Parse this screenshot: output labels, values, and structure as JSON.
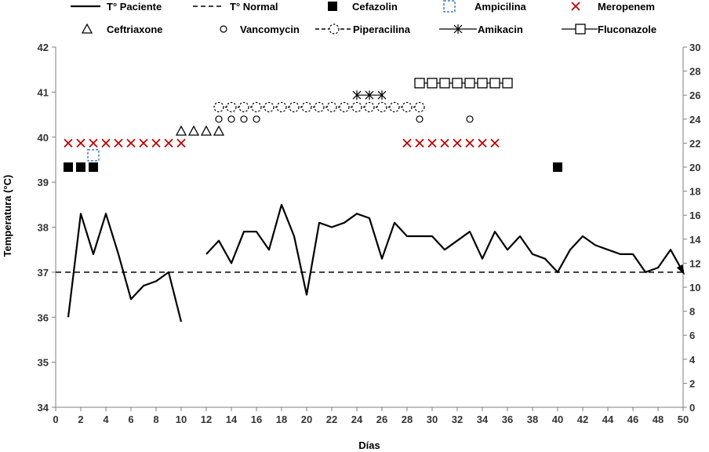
{
  "chart_data": {
    "type": "line",
    "title": "",
    "xlabel": "Días",
    "ylabel": "Temperatura (°C)",
    "y2label": "",
    "xlim": [
      0,
      50
    ],
    "ylim": [
      34,
      42
    ],
    "y2lim": [
      0,
      30
    ],
    "x_ticks": [
      0,
      2,
      4,
      6,
      8,
      10,
      12,
      14,
      16,
      18,
      20,
      22,
      24,
      26,
      28,
      30,
      32,
      34,
      36,
      38,
      40,
      42,
      44,
      46,
      48,
      50
    ],
    "y_ticks": [
      34,
      35,
      36,
      37,
      38,
      39,
      40,
      41,
      42
    ],
    "y2_ticks": [
      0,
      2,
      4,
      6,
      8,
      10,
      12,
      14,
      16,
      18,
      20,
      22,
      24,
      26,
      28,
      30
    ],
    "grid": false,
    "legend_position": "top",
    "legend": [
      {
        "key": "tpac",
        "label": "T° Paciente",
        "style": "solid-line"
      },
      {
        "key": "tnorm",
        "label": "T° Normal",
        "style": "dashed-line"
      },
      {
        "key": "cefazolin",
        "label": "Cefazolin",
        "style": "filled-square"
      },
      {
        "key": "ampicilina",
        "label": "Ampicilina",
        "style": "dashed-blue-square"
      },
      {
        "key": "meropenem",
        "label": "Meropenem",
        "style": "red-x"
      },
      {
        "key": "ceftriaxone",
        "label": "Ceftriaxone",
        "style": "triangle"
      },
      {
        "key": "vancomycin",
        "label": "Vancomycin",
        "style": "circle"
      },
      {
        "key": "piperacilina",
        "label": "Piperacilina",
        "style": "dashed-line-dashed-circle"
      },
      {
        "key": "amikacin",
        "label": "Amikacin",
        "style": "line-asterisk"
      },
      {
        "key": "fluconazole",
        "label": "Fluconazole",
        "style": "line-square"
      }
    ],
    "patient_temperature": {
      "segments": [
        [
          [
            1,
            36.0
          ],
          [
            2,
            38.3
          ],
          [
            3,
            37.4
          ],
          [
            4,
            38.3
          ],
          [
            5,
            37.4
          ],
          [
            6,
            36.4
          ],
          [
            7,
            36.7
          ],
          [
            8,
            36.8
          ],
          [
            9,
            37.0
          ],
          [
            10,
            35.9
          ]
        ],
        [
          [
            12,
            37.4
          ],
          [
            13,
            37.7
          ],
          [
            14,
            37.2
          ],
          [
            15,
            37.9
          ],
          [
            16,
            37.9
          ],
          [
            17,
            37.5
          ],
          [
            18,
            38.5
          ],
          [
            19,
            37.8
          ],
          [
            20,
            36.5
          ],
          [
            21,
            38.1
          ],
          [
            22,
            38.0
          ],
          [
            23,
            38.1
          ],
          [
            24,
            38.3
          ],
          [
            25,
            38.2
          ],
          [
            26,
            37.3
          ],
          [
            27,
            38.1
          ],
          [
            28,
            37.8
          ],
          [
            29,
            37.8
          ],
          [
            30,
            37.8
          ],
          [
            31,
            37.5
          ],
          [
            32,
            37.7
          ],
          [
            33,
            37.9
          ],
          [
            34,
            37.3
          ],
          [
            35,
            37.9
          ],
          [
            36,
            37.5
          ],
          [
            37,
            37.8
          ],
          [
            38,
            37.4
          ],
          [
            39,
            37.3
          ],
          [
            40,
            37.0
          ],
          [
            41,
            37.5
          ],
          [
            42,
            37.8
          ],
          [
            43,
            37.6
          ],
          [
            44,
            37.5
          ],
          [
            45,
            37.4
          ],
          [
            46,
            37.4
          ],
          [
            47,
            37.0
          ],
          [
            48,
            37.1
          ],
          [
            49,
            37.5
          ],
          [
            50,
            37.0
          ]
        ]
      ]
    },
    "normal_temperature": 37.0,
    "treatments_secondary_axis": {
      "cefazolin": {
        "y2": 20,
        "days": [
          1,
          2,
          3,
          40
        ]
      },
      "ampicilina": {
        "y2": 21,
        "days": [
          3
        ]
      },
      "meropenem": {
        "y2": 22,
        "days": [
          1,
          2,
          3,
          4,
          5,
          6,
          7,
          8,
          9,
          10,
          28,
          29,
          30,
          31,
          32,
          33,
          34,
          35
        ]
      },
      "ceftriaxone": {
        "y2": 23,
        "days": [
          10,
          11,
          12,
          13
        ]
      },
      "vancomycin": {
        "y2": 24,
        "days": [
          13,
          14,
          15,
          16,
          29,
          33
        ]
      },
      "piperacilina": {
        "y2": 25,
        "days": [
          13,
          14,
          15,
          16,
          17,
          18,
          19,
          20,
          21,
          22,
          23,
          24,
          25,
          26,
          27,
          28,
          29
        ]
      },
      "amikacin": {
        "y2": 26,
        "days": [
          24,
          25,
          26
        ]
      },
      "fluconazole": {
        "y2": 27,
        "days": [
          29,
          30,
          31,
          32,
          33,
          34,
          35,
          36
        ]
      }
    },
    "colors": {
      "line": "#000000",
      "meropenem": "#c00000",
      "ampicilina": "#4a7ebb",
      "axis": "#7f7f7f"
    }
  }
}
